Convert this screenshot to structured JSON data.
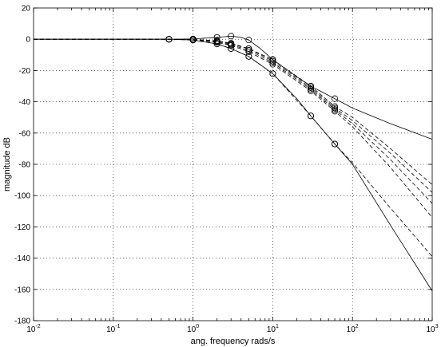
{
  "chart_data": {
    "type": "line",
    "title": "",
    "xlabel": "ang. frequency rads/s",
    "ylabel": "magnitude dB",
    "xscale": "log",
    "xlim": [
      0.01,
      1000
    ],
    "ylim": [
      -180,
      20
    ],
    "x_ticks": [
      {
        "base": "10",
        "exp": "-2",
        "value": 0.01
      },
      {
        "base": "10",
        "exp": "-1",
        "value": 0.1
      },
      {
        "base": "10",
        "exp": "0",
        "value": 1
      },
      {
        "base": "10",
        "exp": "1",
        "value": 10
      },
      {
        "base": "10",
        "exp": "2",
        "value": 100
      },
      {
        "base": "10",
        "exp": "3",
        "value": 1000
      }
    ],
    "y_ticks": [
      "20",
      "0",
      "-20",
      "-40",
      "-60",
      "-80",
      "-100",
      "-120",
      "-140",
      "-160",
      "-180"
    ],
    "grid": true,
    "marker_x": [
      0.5,
      1,
      2,
      3,
      5,
      10,
      30,
      60
    ],
    "series": [
      {
        "style": "solid",
        "points": [
          [
            0.01,
            0
          ],
          [
            0.5,
            0
          ],
          [
            1,
            0.2
          ],
          [
            2,
            1.2
          ],
          [
            3,
            2
          ],
          [
            4,
            1.2
          ],
          [
            5,
            -0.5
          ],
          [
            7,
            -6
          ],
          [
            10,
            -13
          ],
          [
            20,
            -24
          ],
          [
            30,
            -30
          ],
          [
            60,
            -38
          ],
          [
            100,
            -44
          ],
          [
            300,
            -54
          ],
          [
            1000,
            -64
          ]
        ]
      },
      {
        "style": "solid",
        "points": [
          [
            0.01,
            0
          ],
          [
            0.5,
            0
          ],
          [
            1,
            -0.5
          ],
          [
            2,
            -3
          ],
          [
            3,
            -6
          ],
          [
            5,
            -11
          ],
          [
            10,
            -22
          ],
          [
            20,
            -38
          ],
          [
            30,
            -49
          ],
          [
            60,
            -67
          ],
          [
            100,
            -80
          ],
          [
            300,
            -119
          ],
          [
            1000,
            -161
          ]
        ]
      },
      {
        "style": "dashed",
        "points": [
          [
            0.01,
            0
          ],
          [
            0.5,
            0
          ],
          [
            1,
            -0.5
          ],
          [
            2,
            -3
          ],
          [
            3,
            -6
          ],
          [
            5,
            -11
          ],
          [
            10,
            -22
          ],
          [
            30,
            -49
          ],
          [
            60,
            -67
          ],
          [
            100,
            -79
          ],
          [
            300,
            -108
          ],
          [
            1000,
            -139
          ]
        ]
      },
      {
        "style": "dashed",
        "points": [
          [
            0.01,
            0
          ],
          [
            0.5,
            0
          ],
          [
            1,
            -0.3
          ],
          [
            2,
            -2
          ],
          [
            3,
            -4
          ],
          [
            5,
            -8
          ],
          [
            10,
            -16
          ],
          [
            30,
            -33
          ],
          [
            60,
            -46
          ],
          [
            100,
            -56
          ],
          [
            300,
            -82
          ],
          [
            1000,
            -114
          ]
        ]
      },
      {
        "style": "dashed",
        "points": [
          [
            0.01,
            0
          ],
          [
            0.5,
            0
          ],
          [
            1,
            -0.3
          ],
          [
            2,
            -1.5
          ],
          [
            3,
            -3.5
          ],
          [
            5,
            -7
          ],
          [
            10,
            -15
          ],
          [
            30,
            -32
          ],
          [
            60,
            -45
          ],
          [
            100,
            -54
          ],
          [
            300,
            -77
          ],
          [
            1000,
            -105
          ]
        ]
      },
      {
        "style": "dashed",
        "points": [
          [
            0.01,
            0
          ],
          [
            0.5,
            0
          ],
          [
            1,
            -0.2
          ],
          [
            2,
            -1
          ],
          [
            3,
            -3
          ],
          [
            5,
            -6
          ],
          [
            10,
            -14
          ],
          [
            30,
            -31
          ],
          [
            60,
            -44
          ],
          [
            100,
            -52
          ],
          [
            300,
            -73
          ],
          [
            1000,
            -98
          ]
        ]
      },
      {
        "style": "dashed",
        "points": [
          [
            0.01,
            0
          ],
          [
            0.5,
            0
          ],
          [
            1,
            -0.2
          ],
          [
            2,
            -1
          ],
          [
            3,
            -2.5
          ],
          [
            5,
            -6
          ],
          [
            10,
            -13
          ],
          [
            30,
            -30
          ],
          [
            60,
            -43
          ],
          [
            100,
            -50
          ],
          [
            300,
            -70
          ],
          [
            1000,
            -93
          ]
        ]
      }
    ]
  }
}
